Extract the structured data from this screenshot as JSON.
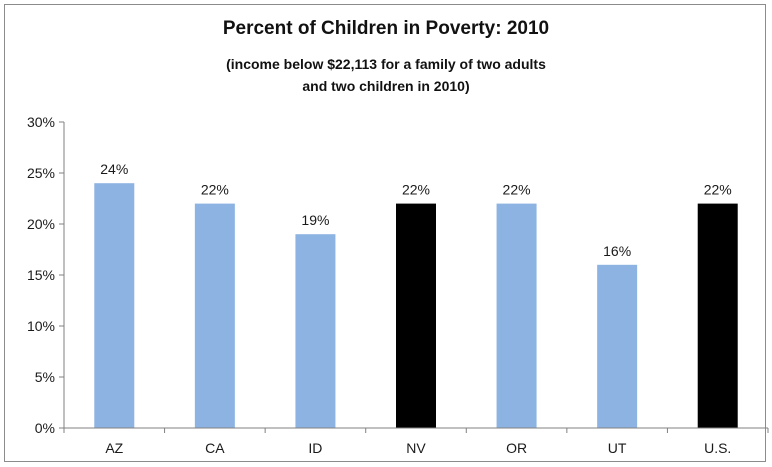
{
  "chart_data": {
    "type": "bar",
    "title": "Percent of Children in Poverty: 2010",
    "subtitle_lines": [
      "(income below $22,113 for a family of two adults",
      "and two children in 2010)"
    ],
    "categories": [
      "AZ",
      "CA",
      "ID",
      "NV",
      "OR",
      "UT",
      "U.S."
    ],
    "values": [
      24,
      22,
      19,
      22,
      22,
      16,
      22
    ],
    "data_labels": [
      "24%",
      "22%",
      "19%",
      "22%",
      "22%",
      "16%",
      "22%"
    ],
    "highlight_categories": [
      "NV",
      "U.S."
    ],
    "colors": {
      "default_bar": "#8db3e2",
      "highlight_bar": "#000000",
      "axis": "#808080",
      "text": "#1a1a1a"
    },
    "ylim": [
      0,
      30
    ],
    "yticks": [
      0,
      5,
      10,
      15,
      20,
      25,
      30
    ],
    "ytick_labels": [
      "0%",
      "5%",
      "10%",
      "15%",
      "20%",
      "25%",
      "30%"
    ],
    "xlabel": "",
    "ylabel": "",
    "grid": false,
    "legend": "none"
  }
}
